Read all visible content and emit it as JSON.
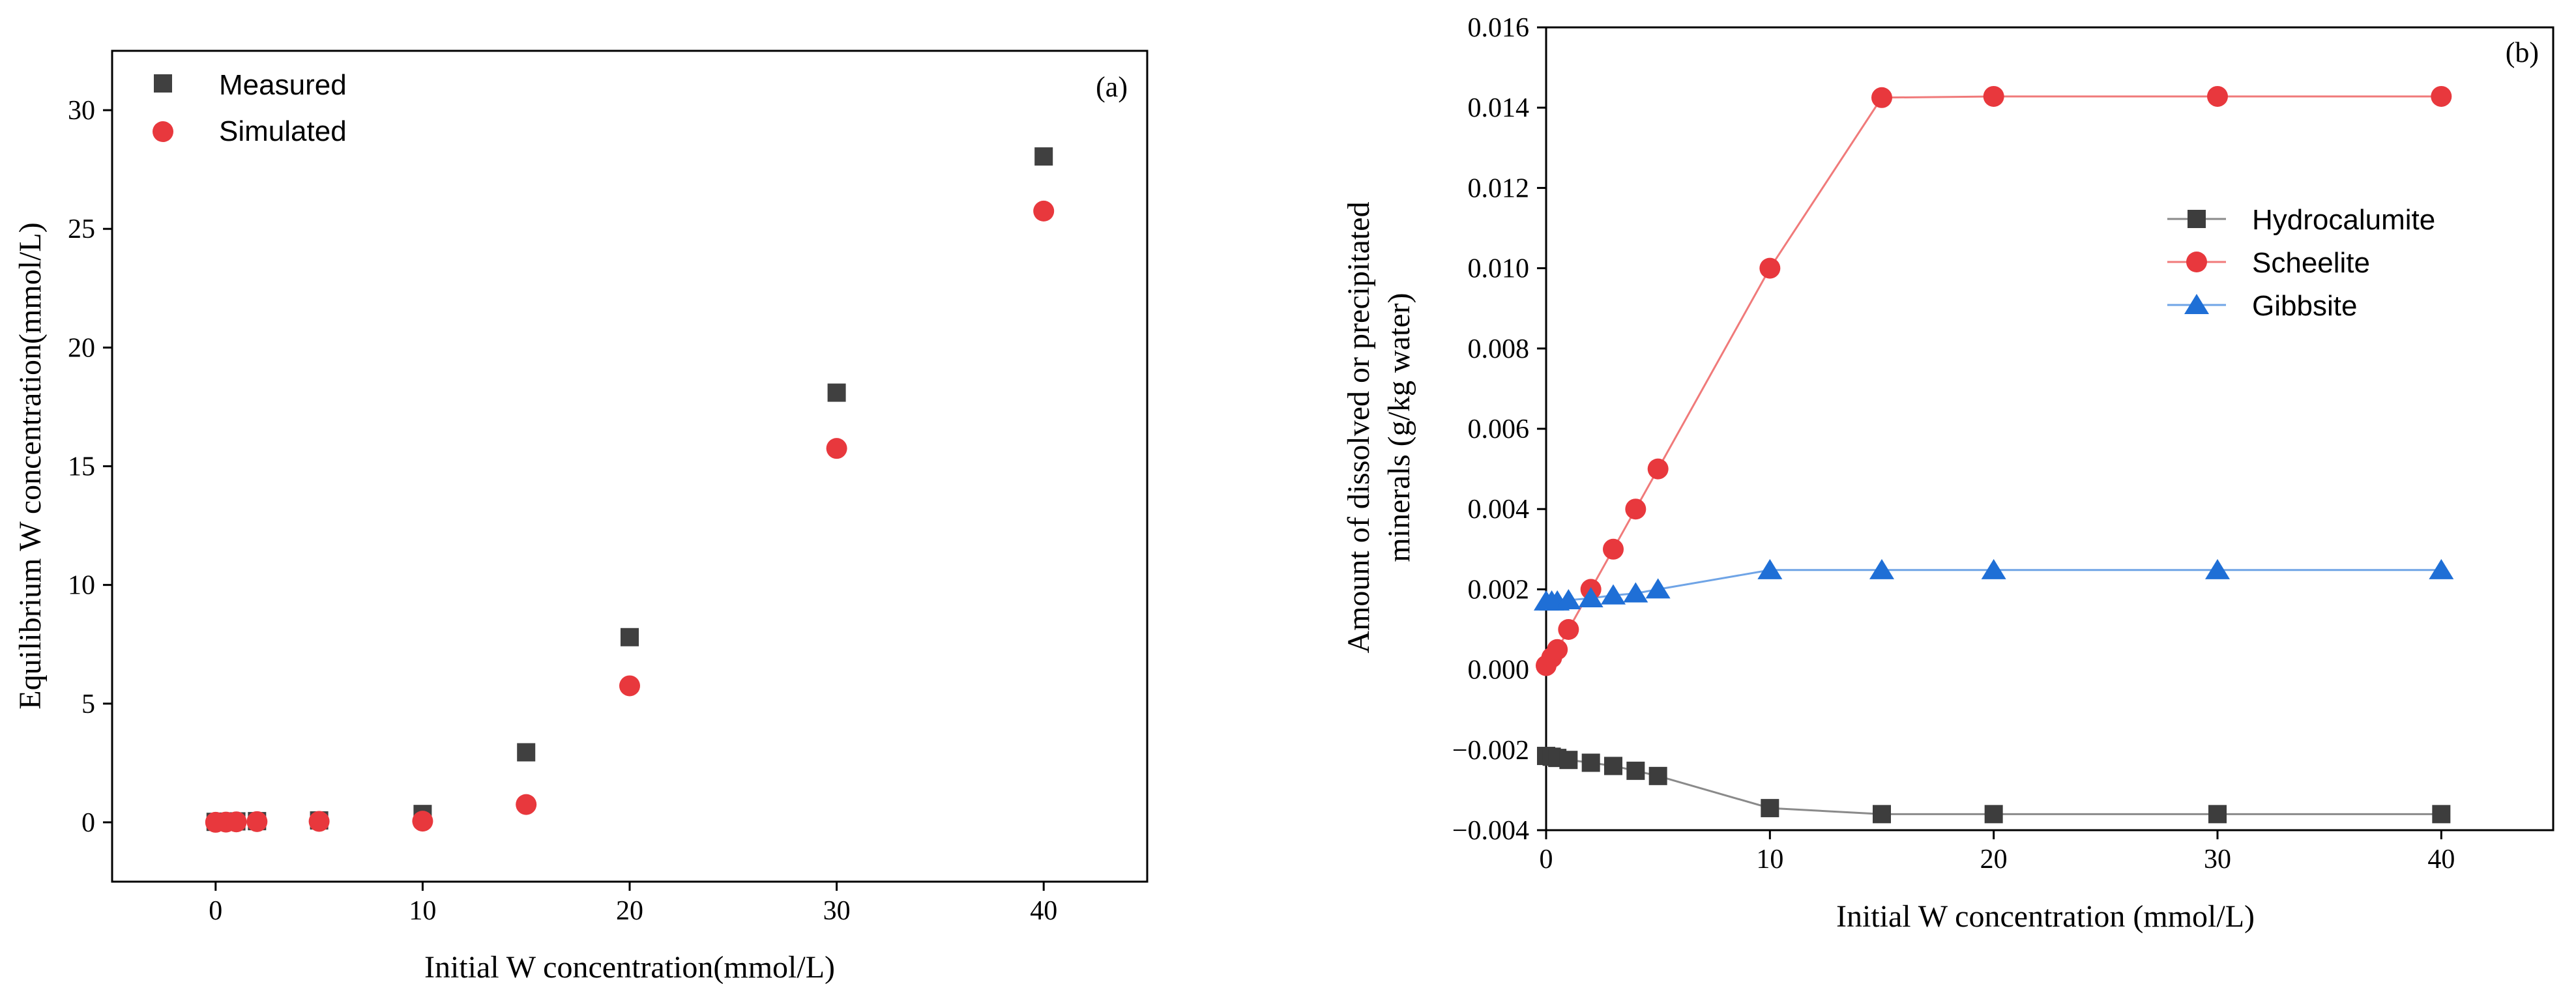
{
  "chart_data": [
    {
      "type": "scatter",
      "panel_label": "(a)",
      "xlabel": "Initial W concentration(mmol/L)",
      "ylabel": "Equilibrium W concentration(mmol/L)",
      "xlim": [
        -5,
        45
      ],
      "ylim": [
        -2.5,
        32.5
      ],
      "xticks": [
        0,
        10,
        20,
        30,
        40
      ],
      "yticks": [
        0,
        5,
        10,
        15,
        20,
        25,
        30
      ],
      "xtick_labels": [
        "0",
        "10",
        "20",
        "30",
        "40"
      ],
      "ytick_labels": [
        "0",
        "5",
        "10",
        "15",
        "20",
        "25",
        "30"
      ],
      "legend_position": "top-left",
      "series": [
        {
          "name": "Measured",
          "marker": "square",
          "color": "#404040",
          "x": [
            0,
            0.5,
            1,
            2,
            5,
            10,
            15,
            20,
            30,
            40
          ],
          "y": [
            0.02,
            0.03,
            0.04,
            0.05,
            0.08,
            0.35,
            2.95,
            7.8,
            18.1,
            28.05
          ]
        },
        {
          "name": "Simulated",
          "marker": "circle",
          "color": "#e8383d",
          "x": [
            0,
            0.5,
            1,
            2,
            5,
            10,
            15,
            20,
            30,
            40
          ],
          "y": [
            0.0,
            0.01,
            0.02,
            0.03,
            0.04,
            0.05,
            0.75,
            5.75,
            15.75,
            25.75
          ]
        }
      ]
    },
    {
      "type": "line",
      "panel_label": "(b)",
      "xlabel": "Initial W concentration (mmol/L)",
      "ylabel_line1": "Amount of dissolved or precipitated",
      "ylabel_line2": "minerals (g/kg water)",
      "xlim": [
        0,
        45
      ],
      "ylim": [
        -0.004,
        0.016
      ],
      "xticks": [
        0,
        10,
        20,
        30,
        40
      ],
      "yticks": [
        -0.004,
        -0.002,
        0.0,
        0.002,
        0.004,
        0.006,
        0.008,
        0.01,
        0.012,
        0.014,
        0.016
      ],
      "xtick_labels": [
        "0",
        "10",
        "20",
        "30",
        "40"
      ],
      "ytick_labels": [
        "−0.004",
        "−0.002",
        "0.000",
        "0.002",
        "0.004",
        "0.006",
        "0.008",
        "0.010",
        "0.012",
        "0.014",
        "0.016"
      ],
      "legend_position": "center-right",
      "series": [
        {
          "name": "Hydrocalumite",
          "marker": "square",
          "color": "#3d3d3d",
          "line_color": "#8a8a8a",
          "x": [
            0,
            0.25,
            0.5,
            1,
            2,
            3,
            4,
            5,
            10,
            15,
            20,
            30,
            40
          ],
          "y": [
            -0.00215,
            -0.00217,
            -0.0022,
            -0.00225,
            -0.00232,
            -0.0024,
            -0.00252,
            -0.00265,
            -0.00345,
            -0.0036,
            -0.0036,
            -0.0036,
            -0.0036
          ]
        },
        {
          "name": "Scheelite",
          "marker": "circle",
          "color": "#e8383d",
          "line_color": "#f07a7a",
          "x": [
            0,
            0.25,
            0.5,
            1,
            2,
            3,
            4,
            5,
            10,
            15,
            20,
            30,
            40
          ],
          "y": [
            0.0001,
            0.0003,
            0.0005,
            0.001,
            0.002,
            0.003,
            0.004,
            0.005,
            0.01,
            0.01425,
            0.01428,
            0.01428,
            0.01428
          ]
        },
        {
          "name": "Gibbsite",
          "marker": "triangle",
          "color": "#1f6fd6",
          "line_color": "#6fa4e6",
          "x": [
            0,
            0.25,
            0.5,
            1,
            2,
            3,
            4,
            5,
            10,
            15,
            20,
            30,
            40
          ],
          "y": [
            0.0017,
            0.0017,
            0.0017,
            0.00173,
            0.00178,
            0.00185,
            0.0019,
            0.002,
            0.00248,
            0.00248,
            0.00248,
            0.00248,
            0.00248
          ]
        }
      ]
    }
  ]
}
